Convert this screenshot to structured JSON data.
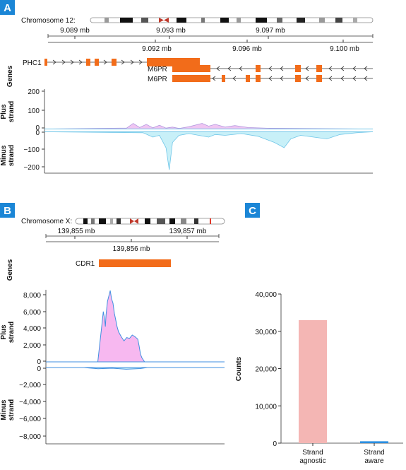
{
  "colors": {
    "gene": "#f26c1a",
    "plus_fill": "#f0c6f2",
    "plus_line": "#b49be0",
    "minus_fill": "#c8f0f8",
    "minus_line": "#6fc6e8",
    "cdr1_plus_fill": "#f7b8f0",
    "cdr1_line": "#3f8fe0",
    "panel_badge": "#1b86d6",
    "bar_agnostic": "#f4b6b4",
    "bar_aware": "#2b8fe0"
  },
  "panel_a": {
    "label": "A",
    "chromosome_label": "Chromosome 12:",
    "scale_top": [
      "9.089 mb",
      "9.093 mb",
      "9.097 mb"
    ],
    "scale_bottom": [
      "9.092 mb",
      "9.096 mb",
      "9.100 mb"
    ],
    "genes_label": "Genes",
    "genes": [
      "PHC1",
      "M6PR",
      "M6PR"
    ],
    "plus_label": [
      "Plus",
      "strand"
    ],
    "minus_label": [
      "Minus",
      "strand"
    ],
    "plus_ticks": [
      "200",
      "100",
      "0"
    ],
    "minus_ticks": [
      "0",
      "−100",
      "−200"
    ]
  },
  "panel_b": {
    "label": "B",
    "chromosome_label": "Chromosome X:",
    "scale_top": [
      "139,855 mb",
      "139,857 mb"
    ],
    "scale_bottom": [
      "139,856 mb"
    ],
    "genes_label": "Genes",
    "genes": [
      "CDR1"
    ],
    "plus_label": [
      "Plus",
      "strand"
    ],
    "minus_label": [
      "Minus",
      "strand"
    ],
    "plus_ticks": [
      "8,000",
      "6,000",
      "4,000",
      "2,000",
      "0"
    ],
    "minus_ticks": [
      "0",
      "−2,000",
      "−4,000",
      "−6,000",
      "−8,000"
    ]
  },
  "chart_data": [
    {
      "panel": "A",
      "type": "area",
      "xlabel": "",
      "ylabel": "Plus strand / Minus strand",
      "plus_ylim": [
        0,
        200
      ],
      "minus_ylim": [
        -200,
        0
      ],
      "series": [
        {
          "name": "Plus strand",
          "x": [
            0,
            0.25,
            0.27,
            0.29,
            0.31,
            0.33,
            0.35,
            0.37,
            0.39,
            0.41,
            0.44,
            0.48,
            0.5,
            0.52,
            0.55,
            0.58,
            0.62,
            0.68,
            1
          ],
          "values": [
            0,
            5,
            30,
            8,
            25,
            6,
            20,
            5,
            10,
            3,
            12,
            30,
            15,
            25,
            10,
            18,
            8,
            4,
            0
          ]
        },
        {
          "name": "Minus strand",
          "x": [
            0,
            0.3,
            0.33,
            0.35,
            0.37,
            0.38,
            0.39,
            0.41,
            0.44,
            0.5,
            0.52,
            0.55,
            0.6,
            0.65,
            0.7,
            0.73,
            0.75,
            0.78,
            0.82,
            0.86,
            0.9,
            0.95,
            1
          ],
          "values": [
            0,
            -5,
            -30,
            -20,
            -90,
            -215,
            -60,
            -20,
            -10,
            -30,
            -15,
            -20,
            -10,
            -25,
            -60,
            -90,
            -40,
            -20,
            -30,
            -40,
            -15,
            -5,
            0
          ]
        }
      ]
    },
    {
      "panel": "B",
      "type": "area",
      "xlabel": "",
      "ylabel": "Plus strand / Minus strand",
      "plus_ylim": [
        0,
        8000
      ],
      "minus_ylim": [
        -8000,
        0
      ],
      "series": [
        {
          "name": "Plus strand",
          "x": [
            0,
            0.1,
            0.13,
            0.14,
            0.15,
            0.155,
            0.16,
            0.17,
            0.19,
            0.2,
            0.21,
            0.22,
            0.23,
            0.24,
            0.25,
            0.27,
            0.29,
            0.31,
            0.33,
            0.35,
            0.37,
            0.39,
            0.4,
            0.41,
            0.42,
            0.44,
            1
          ],
          "values": [
            0,
            0,
            4500,
            6000,
            5000,
            4200,
            5600,
            7200,
            8500,
            7500,
            7000,
            5800,
            5000,
            4200,
            3600,
            3000,
            2500,
            2900,
            2800,
            3200,
            3000,
            2700,
            1900,
            900,
            500,
            0,
            0
          ]
        },
        {
          "name": "Minus strand",
          "x": [
            0,
            0.1,
            0.2,
            0.3,
            0.4,
            0.45,
            1
          ],
          "values": [
            0,
            -150,
            -80,
            -200,
            -120,
            0,
            0
          ]
        }
      ]
    },
    {
      "panel": "C",
      "type": "bar",
      "categories": [
        [
          "Strand",
          "agnostic"
        ],
        [
          "Strand",
          "aware"
        ]
      ],
      "values": [
        33000,
        500
      ],
      "ylabel": "Counts",
      "xlabel": "",
      "ylim": [
        0,
        40000
      ],
      "yticks": [
        "0",
        "10,000",
        "20,000",
        "30,000",
        "40,000"
      ],
      "label": "C"
    }
  ]
}
